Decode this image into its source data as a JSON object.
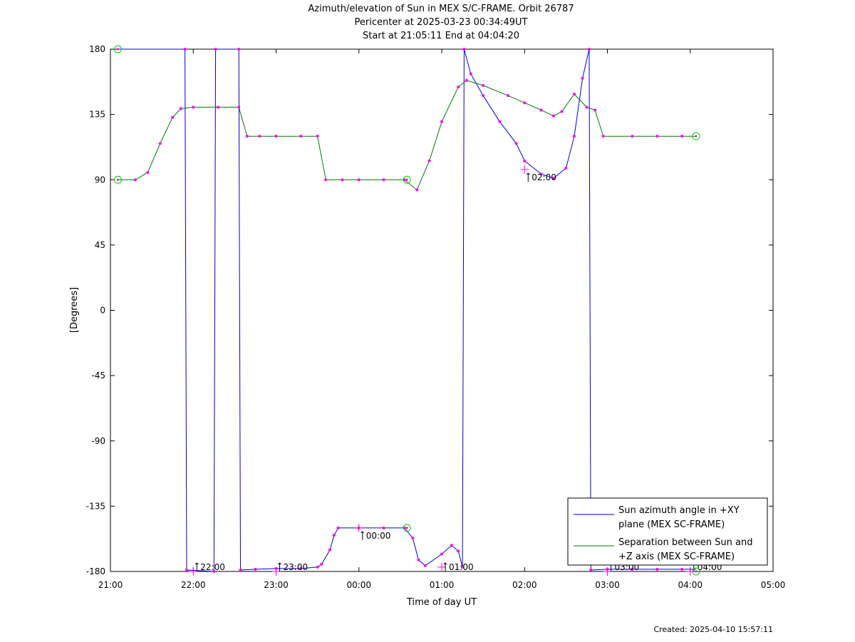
{
  "chart_data": {
    "type": "line",
    "title": "Azimuth/elevation of Sun in MEX S/C-FRAME.  Orbit 26787",
    "subtitle_1": "Pericenter at 2025-03-23 00:34:49UT",
    "subtitle_2": "Start at 21:05:11 End at 04:04:20",
    "xlabel": "Time of day UT",
    "ylabel": "[Degrees]",
    "xlim_hours": [
      21,
      29
    ],
    "ylim": [
      -180,
      180
    ],
    "x_ticks": [
      {
        "h": 21,
        "label": "21:00"
      },
      {
        "h": 22,
        "label": "22:00"
      },
      {
        "h": 23,
        "label": "23:00"
      },
      {
        "h": 24,
        "label": "00:00"
      },
      {
        "h": 25,
        "label": "01:00"
      },
      {
        "h": 26,
        "label": "02:00"
      },
      {
        "h": 27,
        "label": "03:00"
      },
      {
        "h": 28,
        "label": "04:00"
      },
      {
        "h": 29,
        "label": "05:00"
      }
    ],
    "y_ticks": [
      180,
      135,
      90,
      45,
      0,
      -45,
      -90,
      -135,
      -180
    ],
    "legend_position": "bottom-right",
    "series": [
      {
        "name": "Sun azimuth angle in +XY plane (MEX SC-FRAME)",
        "color": "#0000cc",
        "points": [
          [
            21.09,
            180
          ],
          [
            21.9,
            180
          ],
          [
            21.92,
            -179
          ],
          [
            22.25,
            -180
          ],
          [
            22.27,
            180
          ],
          [
            22.55,
            180
          ],
          [
            22.57,
            -179
          ],
          [
            22.75,
            -178.5
          ],
          [
            23.0,
            -178
          ],
          [
            23.3,
            -178
          ],
          [
            23.5,
            -177
          ],
          [
            23.55,
            -175
          ],
          [
            23.65,
            -165
          ],
          [
            23.7,
            -155
          ],
          [
            23.75,
            -150
          ],
          [
            24.0,
            -150
          ],
          [
            24.3,
            -150
          ],
          [
            24.55,
            -150
          ],
          [
            24.65,
            -157
          ],
          [
            24.72,
            -172
          ],
          [
            24.8,
            -176
          ],
          [
            25.0,
            -168
          ],
          [
            25.12,
            -162
          ],
          [
            25.2,
            -166
          ],
          [
            25.25,
            -177
          ],
          [
            25.27,
            180
          ],
          [
            25.35,
            163
          ],
          [
            25.5,
            148
          ],
          [
            25.7,
            130
          ],
          [
            25.9,
            115
          ],
          [
            26.0,
            103
          ],
          [
            26.2,
            94
          ],
          [
            26.35,
            91
          ],
          [
            26.5,
            98
          ],
          [
            26.6,
            120
          ],
          [
            26.7,
            160
          ],
          [
            26.78,
            180
          ],
          [
            26.8,
            -179
          ],
          [
            27.0,
            -178.5
          ],
          [
            27.3,
            -178.5
          ],
          [
            27.6,
            -178.5
          ],
          [
            27.9,
            -178.5
          ],
          [
            28.07,
            -178.5
          ]
        ]
      },
      {
        "name": "Separation between Sun and +Z axis (MEX SC-FRAME)",
        "color": "#007700",
        "points": [
          [
            21.09,
            90
          ],
          [
            21.3,
            90
          ],
          [
            21.45,
            95
          ],
          [
            21.6,
            115
          ],
          [
            21.75,
            133
          ],
          [
            21.85,
            139
          ],
          [
            22.0,
            140
          ],
          [
            22.3,
            140
          ],
          [
            22.55,
            140
          ],
          [
            22.65,
            120
          ],
          [
            22.8,
            120
          ],
          [
            23.0,
            120
          ],
          [
            23.3,
            120
          ],
          [
            23.5,
            120
          ],
          [
            23.6,
            90
          ],
          [
            23.8,
            90
          ],
          [
            24.0,
            90
          ],
          [
            24.3,
            90
          ],
          [
            24.55,
            90
          ],
          [
            24.7,
            83
          ],
          [
            24.85,
            103
          ],
          [
            25.0,
            130
          ],
          [
            25.2,
            154
          ],
          [
            25.3,
            158.5
          ],
          [
            25.5,
            155
          ],
          [
            25.8,
            148
          ],
          [
            26.0,
            143
          ],
          [
            26.2,
            138
          ],
          [
            26.35,
            134
          ],
          [
            26.45,
            137
          ],
          [
            26.6,
            149
          ],
          [
            26.75,
            140
          ],
          [
            26.85,
            138
          ],
          [
            26.95,
            120
          ],
          [
            27.3,
            120
          ],
          [
            27.6,
            120
          ],
          [
            27.9,
            120
          ],
          [
            28.07,
            120
          ]
        ]
      }
    ],
    "time_markers": [
      {
        "label": "22:00",
        "h": 22.0,
        "y": -180
      },
      {
        "label": "23:00",
        "h": 23.0,
        "y": -180
      },
      {
        "label": "00:00",
        "h": 24.0,
        "y": -150
      },
      {
        "label": "01:00",
        "h": 25.0,
        "y": -177
      },
      {
        "label": "02:00",
        "h": 26.0,
        "y": 97
      },
      {
        "label": "03:00",
        "h": 27.0,
        "y": -180
      },
      {
        "label": "04:00",
        "h": 28.0,
        "y": -180
      }
    ],
    "circle_markers": [
      [
        21.09,
        180
      ],
      [
        21.09,
        90
      ],
      [
        24.58,
        90
      ],
      [
        24.58,
        -150
      ],
      [
        28.07,
        120
      ],
      [
        28.07,
        -180
      ]
    ]
  },
  "footer": {
    "created": "Created: 2025-04-10 15:57:11"
  }
}
